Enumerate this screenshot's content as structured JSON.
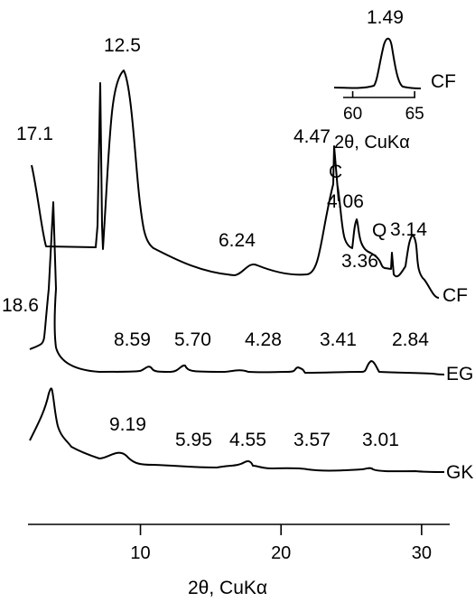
{
  "chart_data": {
    "type": "line",
    "main": {
      "xlabel": "2θ, CuKα",
      "xlim": [
        2,
        32
      ],
      "xticks": [
        10,
        20,
        30
      ],
      "series": [
        {
          "name": "CF",
          "peaks": [
            {
              "x": 5.2,
              "d": "17.1"
            },
            {
              "x": 7.1,
              "d": "12.5"
            },
            {
              "x": 14.3,
              "d": "6.24"
            },
            {
              "x": 19.9,
              "d": "4.47"
            },
            {
              "x": 21.9,
              "d": "4.06",
              "mark": "C"
            },
            {
              "x": 26.6,
              "d": "3.36",
              "mark": "Q"
            },
            {
              "x": 28.4,
              "d": "3.14"
            }
          ]
        },
        {
          "name": "EG",
          "peaks": [
            {
              "x": 5.0,
              "d": "18.6"
            },
            {
              "x": 10.4,
              "d": "8.59"
            },
            {
              "x": 15.5,
              "d": "5.70"
            },
            {
              "x": 20.8,
              "d": "4.28"
            },
            {
              "x": 26.1,
              "d": "3.41"
            },
            {
              "x": 31.5,
              "d": "2.84"
            }
          ]
        },
        {
          "name": "GK",
          "peaks": [
            {
              "x": 9.7,
              "d": "9.19"
            },
            {
              "x": 14.9,
              "d": "5.95"
            },
            {
              "x": 19.5,
              "d": "4.55"
            },
            {
              "x": 24.9,
              "d": "3.57"
            },
            {
              "x": 29.6,
              "d": "3.01"
            }
          ]
        }
      ]
    },
    "inset": {
      "xlabel": "2θ, CuKα",
      "xlim": [
        58.5,
        65.5
      ],
      "xticks": [
        60,
        65
      ],
      "series": [
        {
          "name": "CF",
          "peaks": [
            {
              "x": 62.3,
              "d": "1.49"
            }
          ]
        }
      ]
    }
  }
}
